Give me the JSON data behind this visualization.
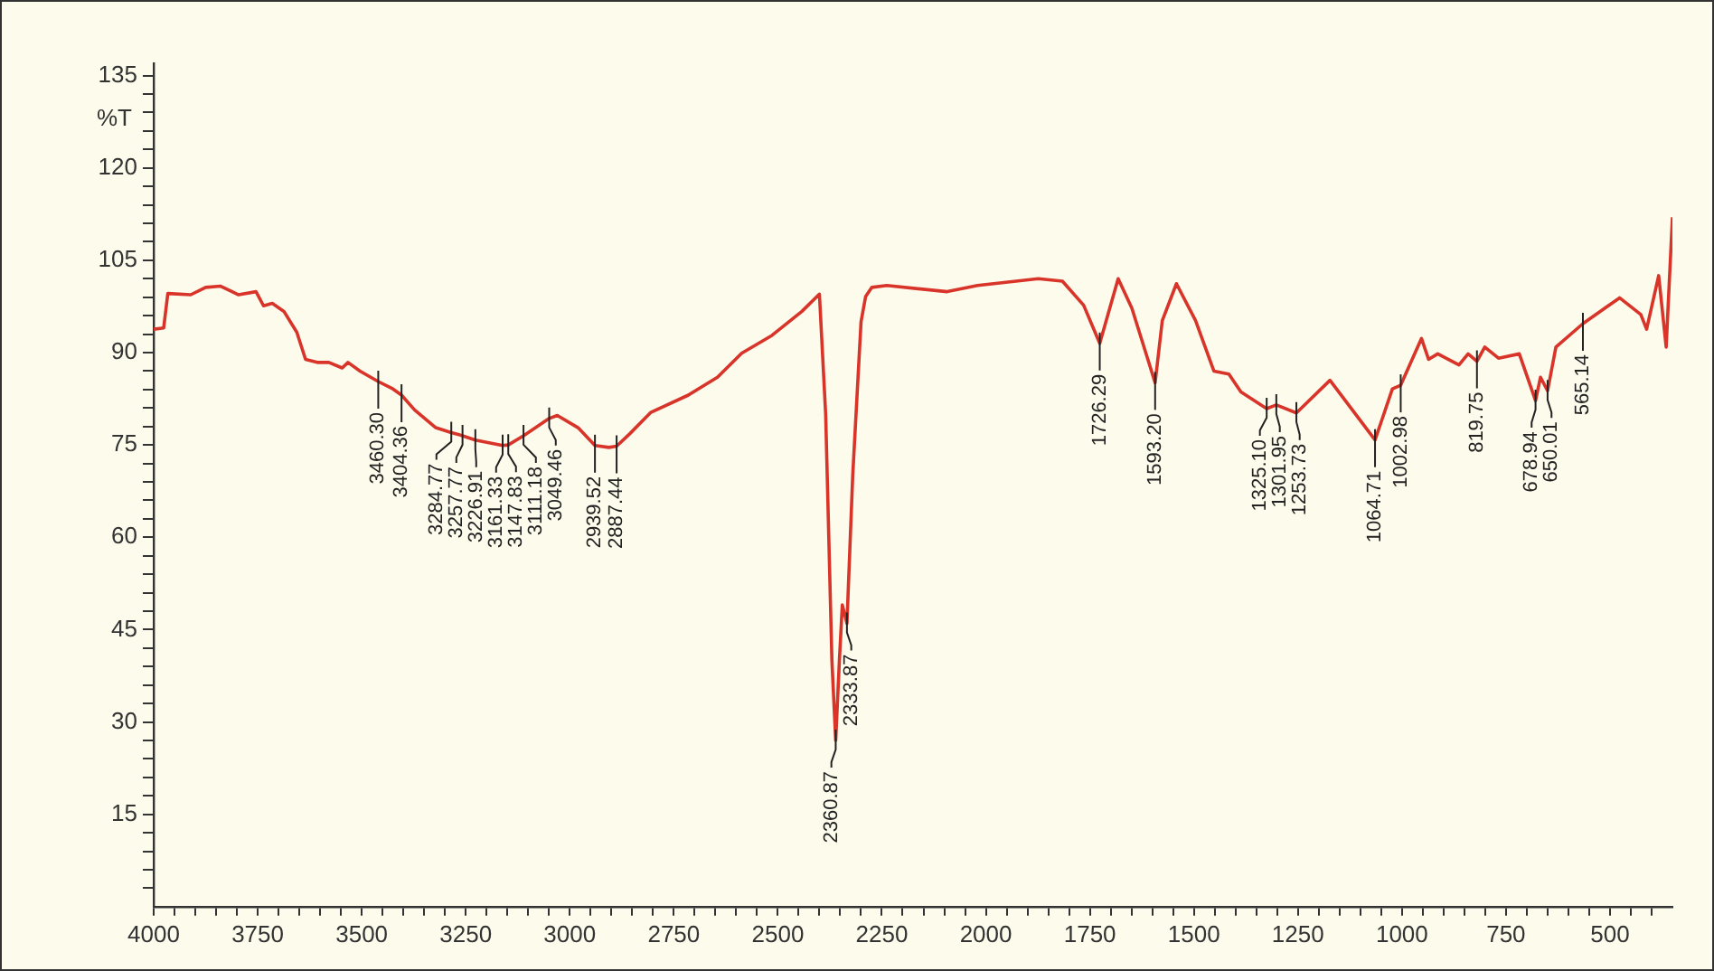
{
  "chart_data": {
    "type": "line",
    "ylabel": "%T",
    "xlim": [
      4000,
      350
    ],
    "ylim": [
      0,
      137
    ],
    "grid": false,
    "legend": false,
    "marker": "none",
    "line_style": "solid",
    "xticks": [
      4000,
      {
        "value": 3950,
        "label": null
      },
      {
        "value": 3900,
        "label": null
      },
      {
        "value": 3850,
        "label": null
      },
      {
        "value": 3800,
        "label": null
      },
      3750,
      {
        "value": 3700,
        "label": null
      },
      {
        "value": 3650,
        "label": null
      },
      {
        "value": 3600,
        "label": null
      },
      {
        "value": 3550,
        "label": null
      },
      3500,
      {
        "value": 3450,
        "label": null
      },
      {
        "value": 3400,
        "label": null
      },
      {
        "value": 3350,
        "label": null
      },
      {
        "value": 3300,
        "label": null
      },
      3250,
      {
        "value": 3200,
        "label": null
      },
      {
        "value": 3150,
        "label": null
      },
      {
        "value": 3100,
        "label": null
      },
      {
        "value": 3050,
        "label": null
      },
      3000,
      {
        "value": 2950,
        "label": null
      },
      {
        "value": 2900,
        "label": null
      },
      {
        "value": 2850,
        "label": null
      },
      {
        "value": 2800,
        "label": null
      },
      2750,
      {
        "value": 2700,
        "label": null
      },
      {
        "value": 2650,
        "label": null
      },
      {
        "value": 2600,
        "label": null
      },
      {
        "value": 2550,
        "label": null
      },
      2500,
      {
        "value": 2450,
        "label": null
      },
      {
        "value": 2400,
        "label": null
      },
      {
        "value": 2350,
        "label": null
      },
      {
        "value": 2300,
        "label": null
      },
      2250,
      {
        "value": 2200,
        "label": null
      },
      {
        "value": 2150,
        "label": null
      },
      {
        "value": 2100,
        "label": null
      },
      {
        "value": 2050,
        "label": null
      },
      2000,
      {
        "value": 1950,
        "label": null
      },
      {
        "value": 1900,
        "label": null
      },
      {
        "value": 1850,
        "label": null
      },
      {
        "value": 1800,
        "label": null
      },
      1750,
      {
        "value": 1700,
        "label": null
      },
      {
        "value": 1650,
        "label": null
      },
      {
        "value": 1600,
        "label": null
      },
      {
        "value": 1550,
        "label": null
      },
      1500,
      {
        "value": 1450,
        "label": null
      },
      {
        "value": 1400,
        "label": null
      },
      {
        "value": 1350,
        "label": null
      },
      {
        "value": 1300,
        "label": null
      },
      1250,
      {
        "value": 1200,
        "label": null
      },
      {
        "value": 1150,
        "label": null
      },
      {
        "value": 1100,
        "label": null
      },
      {
        "value": 1050,
        "label": null
      },
      1000,
      {
        "value": 950,
        "label": null
      },
      {
        "value": 900,
        "label": null
      },
      {
        "value": 850,
        "label": null
      },
      {
        "value": 800,
        "label": null
      },
      750,
      {
        "value": 700,
        "label": null
      },
      {
        "value": 650,
        "label": null
      },
      {
        "value": 600,
        "label": null
      },
      {
        "value": 550,
        "label": null
      },
      500,
      {
        "value": 450,
        "label": null
      },
      {
        "value": 400,
        "label": null
      }
    ],
    "yticks": [
      {
        "value": 3,
        "label": null
      },
      {
        "value": 6,
        "label": null
      },
      {
        "value": 9,
        "label": null
      },
      {
        "value": 12,
        "label": null
      },
      15,
      {
        "value": 18,
        "label": null
      },
      {
        "value": 21,
        "label": null
      },
      {
        "value": 24,
        "label": null
      },
      {
        "value": 27,
        "label": null
      },
      30,
      {
        "value": 33,
        "label": null
      },
      {
        "value": 36,
        "label": null
      },
      {
        "value": 39,
        "label": null
      },
      {
        "value": 42,
        "label": null
      },
      45,
      {
        "value": 48,
        "label": null
      },
      {
        "value": 51,
        "label": null
      },
      {
        "value": 54,
        "label": null
      },
      {
        "value": 57,
        "label": null
      },
      60,
      {
        "value": 63,
        "label": null
      },
      {
        "value": 66,
        "label": null
      },
      {
        "value": 69,
        "label": null
      },
      {
        "value": 72,
        "label": null
      },
      75,
      {
        "value": 78,
        "label": null
      },
      {
        "value": 81,
        "label": null
      },
      {
        "value": 84,
        "label": null
      },
      {
        "value": 87,
        "label": null
      },
      90,
      {
        "value": 93,
        "label": null
      },
      {
        "value": 96,
        "label": null
      },
      {
        "value": 99,
        "label": null
      },
      {
        "value": 102,
        "label": null
      },
      105,
      {
        "value": 108,
        "label": null
      },
      {
        "value": 111,
        "label": null
      },
      {
        "value": 114,
        "label": null
      },
      {
        "value": 117,
        "label": null
      },
      120,
      {
        "value": 123,
        "label": null
      },
      {
        "value": 126,
        "label": null
      },
      {
        "value": 129,
        "label": null
      },
      {
        "value": 132,
        "label": null
      },
      135
    ],
    "series": [
      {
        "color": "#d8342a",
        "x": [
          4000,
          3976,
          3966,
          3911,
          3875,
          3840,
          3796,
          3754,
          3736,
          3715,
          3687,
          3656,
          3635,
          3605,
          3579,
          3547,
          3533,
          3504,
          3460.3,
          3425,
          3404.36,
          3373,
          3322,
          3284.77,
          3257.77,
          3226.91,
          3161.33,
          3147.83,
          3111.18,
          3049.46,
          3030,
          2980,
          2939.52,
          2906,
          2887.44,
          2856,
          2805,
          2715,
          2645,
          2587,
          2514,
          2442,
          2400,
          2385,
          2370,
          2360.87,
          2352,
          2345,
          2333.87,
          2320,
          2300,
          2289,
          2274,
          2238,
          2093,
          2020,
          1874,
          1816,
          1765,
          1726.29,
          1682,
          1649,
          1593.2,
          1576,
          1542,
          1496,
          1452,
          1416,
          1387,
          1325.1,
          1301.95,
          1253.73,
          1173,
          1064.71,
          1023,
          1002.98,
          953,
          936,
          914,
          863,
          841,
          819.75,
          801,
          768,
          718,
          678.94,
          667,
          650.01,
          630,
          565.14,
          477,
          426,
          412,
          383,
          365,
          350
        ],
        "values": [
          93.8,
          94,
          99.6,
          99.4,
          100.6,
          100.8,
          99.4,
          99.9,
          97.6,
          98,
          96.7,
          93.3,
          88.9,
          88.4,
          88.4,
          87.5,
          88.4,
          87,
          85.3,
          84.1,
          83.1,
          80.7,
          77.8,
          77,
          76.5,
          75.8,
          74.9,
          75,
          76.5,
          79.3,
          79.8,
          77.8,
          74.9,
          74.6,
          74.8,
          76.8,
          80.3,
          83.1,
          86,
          89.9,
          92.8,
          96.7,
          99.5,
          80,
          40,
          27,
          40,
          49,
          46,
          70,
          95,
          99.1,
          100.6,
          100.9,
          99.9,
          100.9,
          102,
          101.6,
          97.7,
          91.5,
          102,
          97.2,
          85.1,
          95.2,
          101.2,
          95.2,
          87,
          86.5,
          83.6,
          80.9,
          81.5,
          80.2,
          85.5,
          75.8,
          84.1,
          84.7,
          92.3,
          88.9,
          89.8,
          88,
          89.8,
          88.6,
          90.9,
          89.1,
          89.8,
          82.2,
          86,
          83.8,
          90.9,
          94.7,
          98.9,
          96.2,
          93.8,
          102.5,
          90.9,
          112
        ]
      }
    ],
    "annotations": [
      {
        "text": "3460.30",
        "x": 3460.3,
        "y": 85.3
      },
      {
        "text": "3404.36",
        "x": 3404.36,
        "y": 83.1
      },
      {
        "text": "3284.77",
        "x": 3284.77,
        "y": 77
      },
      {
        "text": "3257.77",
        "x": 3257.77,
        "y": 76.5
      },
      {
        "text": "3226.91",
        "x": 3226.91,
        "y": 75.8
      },
      {
        "text": "3161.33",
        "x": 3161.33,
        "y": 74.9
      },
      {
        "text": "3147.83",
        "x": 3147.83,
        "y": 75
      },
      {
        "text": "3111.18",
        "x": 3111.18,
        "y": 76.5
      },
      {
        "text": "3049.46",
        "x": 3049.46,
        "y": 79.3
      },
      {
        "text": "2939.52",
        "x": 2939.52,
        "y": 74.9
      },
      {
        "text": "2887.44",
        "x": 2887.44,
        "y": 74.8
      },
      {
        "text": "2360.87",
        "x": 2360.87,
        "y": 27
      },
      {
        "text": "2333.87",
        "x": 2333.87,
        "y": 46
      },
      {
        "text": "1726.29",
        "x": 1726.29,
        "y": 91.5
      },
      {
        "text": "1593.20",
        "x": 1593.2,
        "y": 85.1
      },
      {
        "text": "1325.10",
        "x": 1325.1,
        "y": 80.9
      },
      {
        "text": "1301.95",
        "x": 1301.95,
        "y": 81.5
      },
      {
        "text": "1253.73",
        "x": 1253.73,
        "y": 80.2
      },
      {
        "text": "1064.71",
        "x": 1064.71,
        "y": 75.8
      },
      {
        "text": "1002.98",
        "x": 1002.98,
        "y": 84.7
      },
      {
        "text": "819.75",
        "x": 819.75,
        "y": 88.6
      },
      {
        "text": "678.94",
        "x": 678.94,
        "y": 82.2
      },
      {
        "text": "650.01",
        "x": 650.01,
        "y": 83.8
      },
      {
        "text": "565.14",
        "x": 565.14,
        "y": 94.7
      }
    ]
  }
}
